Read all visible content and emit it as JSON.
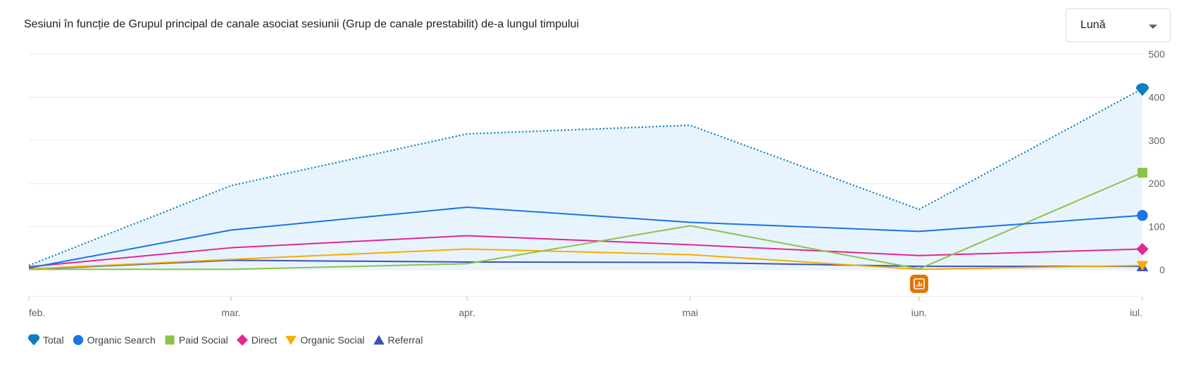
{
  "title": "Sesiuni în funcție de Grupul principal de canale asociat sesiunii (Grup de canale prestabilit) de-a lungul timpului",
  "period_select": {
    "value": "Lună"
  },
  "chart_data": {
    "type": "line",
    "categories": [
      "feb.",
      "mar.",
      "apr.",
      "mai",
      "iun.",
      "iul."
    ],
    "ylim": [
      0,
      500
    ],
    "yticks": [
      0,
      100,
      200,
      300,
      400,
      500
    ],
    "grid": true,
    "legend_position": "bottom-left",
    "series": [
      {
        "name": "Total",
        "values": [
          10,
          195,
          315,
          335,
          140,
          420
        ],
        "color": "#0b7fbf",
        "marker": "pin",
        "style": "dotted",
        "area": true
      },
      {
        "name": "Organic Search",
        "values": [
          4,
          92,
          145,
          110,
          89,
          126
        ],
        "color": "#1a73e8",
        "marker": "circle",
        "style": "solid"
      },
      {
        "name": "Paid Social",
        "values": [
          1,
          1,
          14,
          102,
          2,
          225
        ],
        "color": "#8bc34a",
        "marker": "square",
        "style": "solid"
      },
      {
        "name": "Direct",
        "values": [
          7,
          51,
          79,
          58,
          33,
          48
        ],
        "color": "#e52592",
        "marker": "diamond",
        "style": "solid"
      },
      {
        "name": "Organic Social",
        "values": [
          2,
          24,
          48,
          35,
          1,
          10
        ],
        "color": "#f9ab00",
        "marker": "triangle-down",
        "style": "solid"
      },
      {
        "name": "Referral",
        "values": [
          1,
          22,
          18,
          17,
          8,
          8
        ],
        "color": "#3f51b5",
        "marker": "triangle-up",
        "style": "solid"
      }
    ],
    "annotation": {
      "category": "iun.",
      "icon": "annotation-chart-icon",
      "color": "#e37400"
    }
  }
}
